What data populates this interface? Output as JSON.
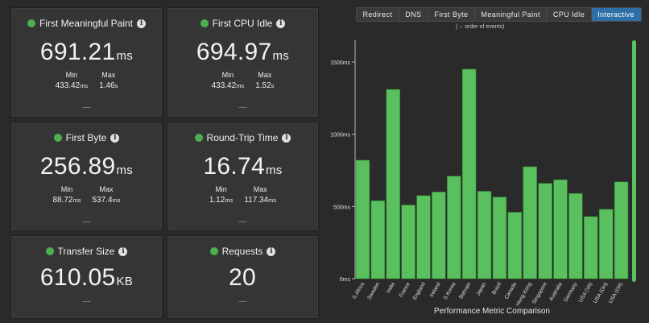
{
  "cards": [
    {
      "title": "First Meaningful Paint",
      "value": "691.21",
      "unit": "ms",
      "min_label": "Min",
      "min": "433.42",
      "min_unit": "ms",
      "max_label": "Max",
      "max": "1.46",
      "max_unit": "s",
      "dash": "—"
    },
    {
      "title": "First CPU Idle",
      "value": "694.97",
      "unit": "ms",
      "min_label": "Min",
      "min": "433.42",
      "min_unit": "ms",
      "max_label": "Max",
      "max": "1.52",
      "max_unit": "s",
      "dash": "—"
    },
    {
      "title": "First Byte",
      "value": "256.89",
      "unit": "ms",
      "min_label": "Min",
      "min": "88.72",
      "min_unit": "ms",
      "max_label": "Max",
      "max": "537.4",
      "max_unit": "ms",
      "dash": "—"
    },
    {
      "title": "Round-Trip Time",
      "value": "16.74",
      "unit": "ms",
      "min_label": "Min",
      "min": "1.12",
      "min_unit": "ms",
      "max_label": "Max",
      "max": "117.34",
      "max_unit": "ms",
      "dash": "—"
    },
    {
      "title": "Transfer Size",
      "value": "610.05",
      "unit": "KB",
      "dash": "—"
    },
    {
      "title": "Requests",
      "value": "20",
      "unit": "",
      "dash": "—"
    }
  ],
  "info_glyph": "i",
  "status_color": "#4caf50",
  "tabs": [
    {
      "label": "Redirect",
      "active": false
    },
    {
      "label": "DNS",
      "active": false
    },
    {
      "label": "First Byte",
      "active": false
    },
    {
      "label": "Meaningful Paint",
      "active": false
    },
    {
      "label": "CPU Idle",
      "active": false
    },
    {
      "label": "Interactive",
      "active": true
    }
  ],
  "hint": "(→ order of events)",
  "accent_color": "#2e6fa7",
  "chart_data": {
    "type": "bar",
    "title": "Performance Metric Comparison",
    "categories": [
      "S.Africa",
      "Sweden",
      "India",
      "France",
      "England",
      "Ireland",
      "S.Korea",
      "Bahrain",
      "Japan",
      "Brazil",
      "Canada",
      "Hong Kong",
      "Singapore",
      "Australia",
      "Germany",
      "USA (VA)",
      "USA (OH)",
      "USA (OR)"
    ],
    "values": [
      820,
      540,
      1310,
      510,
      575,
      600,
      710,
      1450,
      605,
      565,
      460,
      775,
      660,
      685,
      590,
      430,
      480,
      670
    ],
    "ylim": [
      0,
      1650
    ],
    "yticks": [
      {
        "v": 0,
        "label": "0ms"
      },
      {
        "v": 500,
        "label": "500ms"
      },
      {
        "v": 1000,
        "label": "1000ms"
      },
      {
        "v": 1500,
        "label": "1500ms"
      }
    ],
    "bar_color": "#5ac05e",
    "grid": true
  }
}
